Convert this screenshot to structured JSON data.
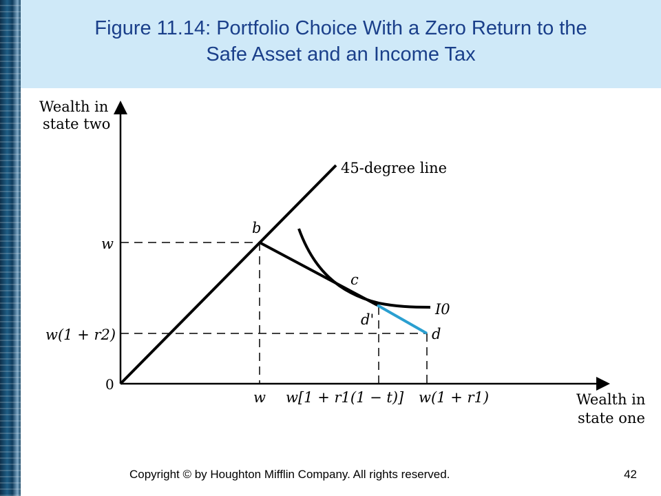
{
  "title": {
    "line1": "Figure 11.14:  Portfolio Choice With a Zero Return to the",
    "line2": "Safe Asset and an Income Tax"
  },
  "axes": {
    "y_label_line1": "Wealth in",
    "y_label_line2": "state two",
    "x_label_line1": "Wealth in",
    "x_label_line2": "state one",
    "origin": "0"
  },
  "y_ticks": {
    "w": "w",
    "w_r2": "w(1 + r2)"
  },
  "x_ticks": {
    "w": "w",
    "w_tax": "w[1 + r1(1 − t)]",
    "w_r1": "w(1 + r1)"
  },
  "curve_labels": {
    "line45": "45-degree line",
    "indiff": "I0"
  },
  "points": {
    "b": "b",
    "c": "c",
    "d_prime": "d'",
    "d": "d"
  },
  "colors": {
    "axes": "#000000",
    "taxed_segment": "#2a9fd0",
    "title_text": "#1a3f8a",
    "title_band": "#cfe9f8"
  },
  "footer": {
    "copyright": "Copyright © by Houghton Mifflin Company. All rights reserved.",
    "page": "42"
  }
}
